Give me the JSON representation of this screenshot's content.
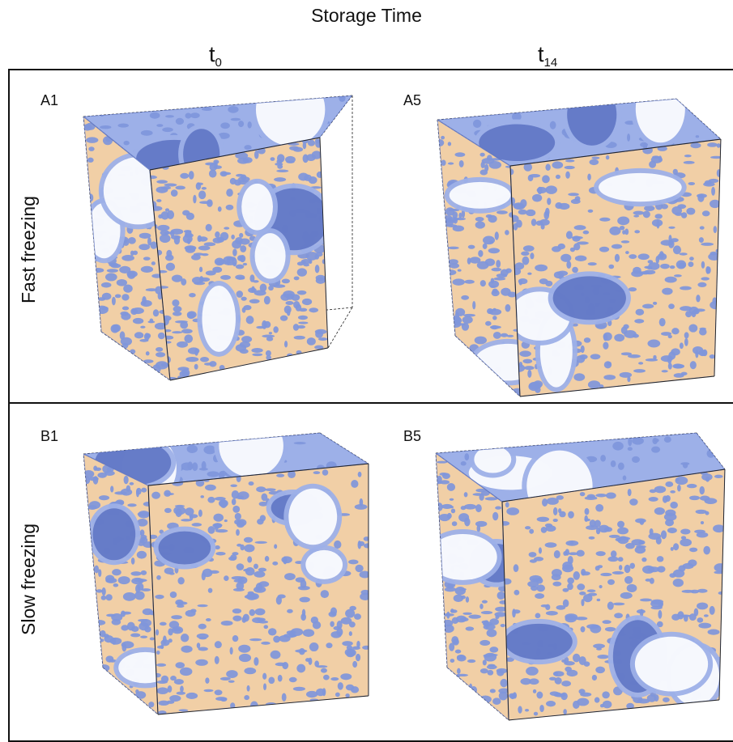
{
  "header": {
    "title": "Storage Time"
  },
  "columns": [
    {
      "label": "t",
      "sub": "0"
    },
    {
      "label": "t",
      "sub": "14"
    }
  ],
  "rows": [
    {
      "label": "Fast freezing"
    },
    {
      "label": "Slow freezing"
    }
  ],
  "panels": [
    {
      "tag": "A1"
    },
    {
      "tag": "A5"
    },
    {
      "tag": "B1"
    },
    {
      "tag": "B5"
    }
  ],
  "colors": {
    "matrix": "#f1cfa6",
    "pore": "#7f96db",
    "pore_dark": "#5f76c4",
    "pore_light": "#9db0e8",
    "edge": "#222222"
  }
}
